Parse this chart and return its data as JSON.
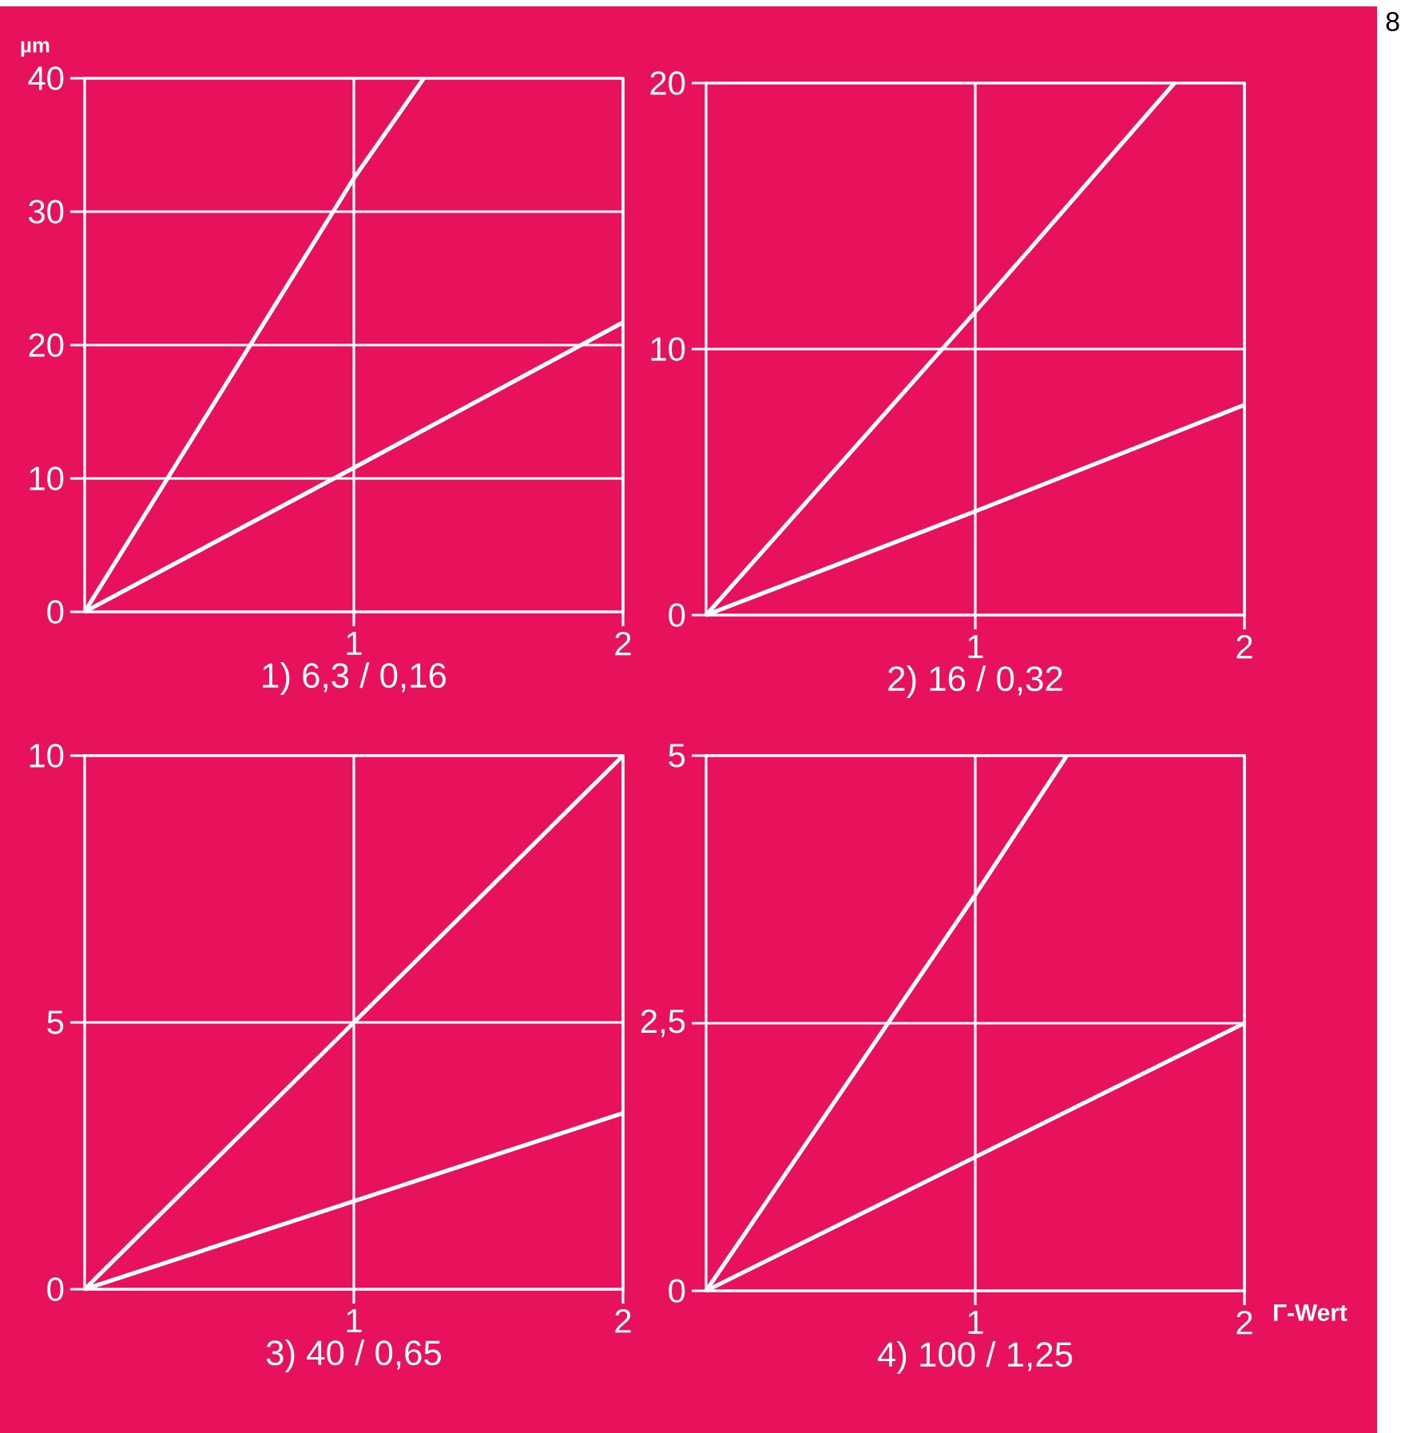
{
  "chart_data": [
    {
      "type": "line",
      "title": "1) 6,3 / 0,16",
      "ylabel": "µm",
      "xlim": [
        0,
        2
      ],
      "ylim": [
        0,
        40
      ],
      "xticks": [
        1,
        2
      ],
      "yticks": [
        0,
        10,
        20,
        30,
        40
      ],
      "grid": true,
      "series": [
        {
          "color": "#ffffff",
          "x": [
            0,
            1,
            1.26
          ],
          "values": [
            0,
            32.5,
            40
          ]
        },
        {
          "color": "#ffffff",
          "x": [
            0,
            1,
            2
          ],
          "values": [
            0,
            10.8,
            21.7
          ]
        }
      ]
    },
    {
      "type": "line",
      "title": "2) 16 / 0,32",
      "annotations": [
        "8"
      ],
      "xlim": [
        0,
        2
      ],
      "ylim": [
        0,
        20
      ],
      "xticks": [
        1,
        2
      ],
      "yticks": [
        0,
        10,
        20
      ],
      "grid": true,
      "series": [
        {
          "color": "#ffffff",
          "x": [
            0,
            1,
            1.74
          ],
          "values": [
            0,
            11.4,
            20
          ]
        },
        {
          "color": "#ffffff",
          "x": [
            0,
            1,
            2
          ],
          "values": [
            0,
            3.9,
            7.9
          ]
        }
      ]
    },
    {
      "type": "line",
      "title": "3) 40 / 0,65",
      "xlim": [
        0,
        2
      ],
      "ylim": [
        0,
        10
      ],
      "xticks": [
        1,
        2
      ],
      "yticks": [
        0,
        5,
        10
      ],
      "grid": true,
      "series": [
        {
          "color": "#ffffff",
          "x": [
            0,
            1,
            2
          ],
          "values": [
            0,
            5,
            10
          ]
        },
        {
          "color": "#ffffff",
          "x": [
            0,
            1,
            2
          ],
          "values": [
            0,
            1.65,
            3.3
          ]
        }
      ]
    },
    {
      "type": "line",
      "title": "4) 100 / 1,25",
      "xlabel": "Γ-Wert",
      "xlim": [
        0,
        2
      ],
      "ylim": [
        0,
        5
      ],
      "xticks": [
        1,
        2
      ],
      "yticks": [
        0,
        {
          "value": 2.5,
          "label": "2,5"
        },
        5
      ],
      "grid": true,
      "series": [
        {
          "color": "#ffffff",
          "x": [
            0,
            1,
            1.34
          ],
          "values": [
            0,
            3.7,
            5
          ]
        },
        {
          "color": "#ffffff",
          "x": [
            0,
            1,
            2
          ],
          "values": [
            0,
            1.25,
            2.5
          ]
        }
      ]
    }
  ]
}
